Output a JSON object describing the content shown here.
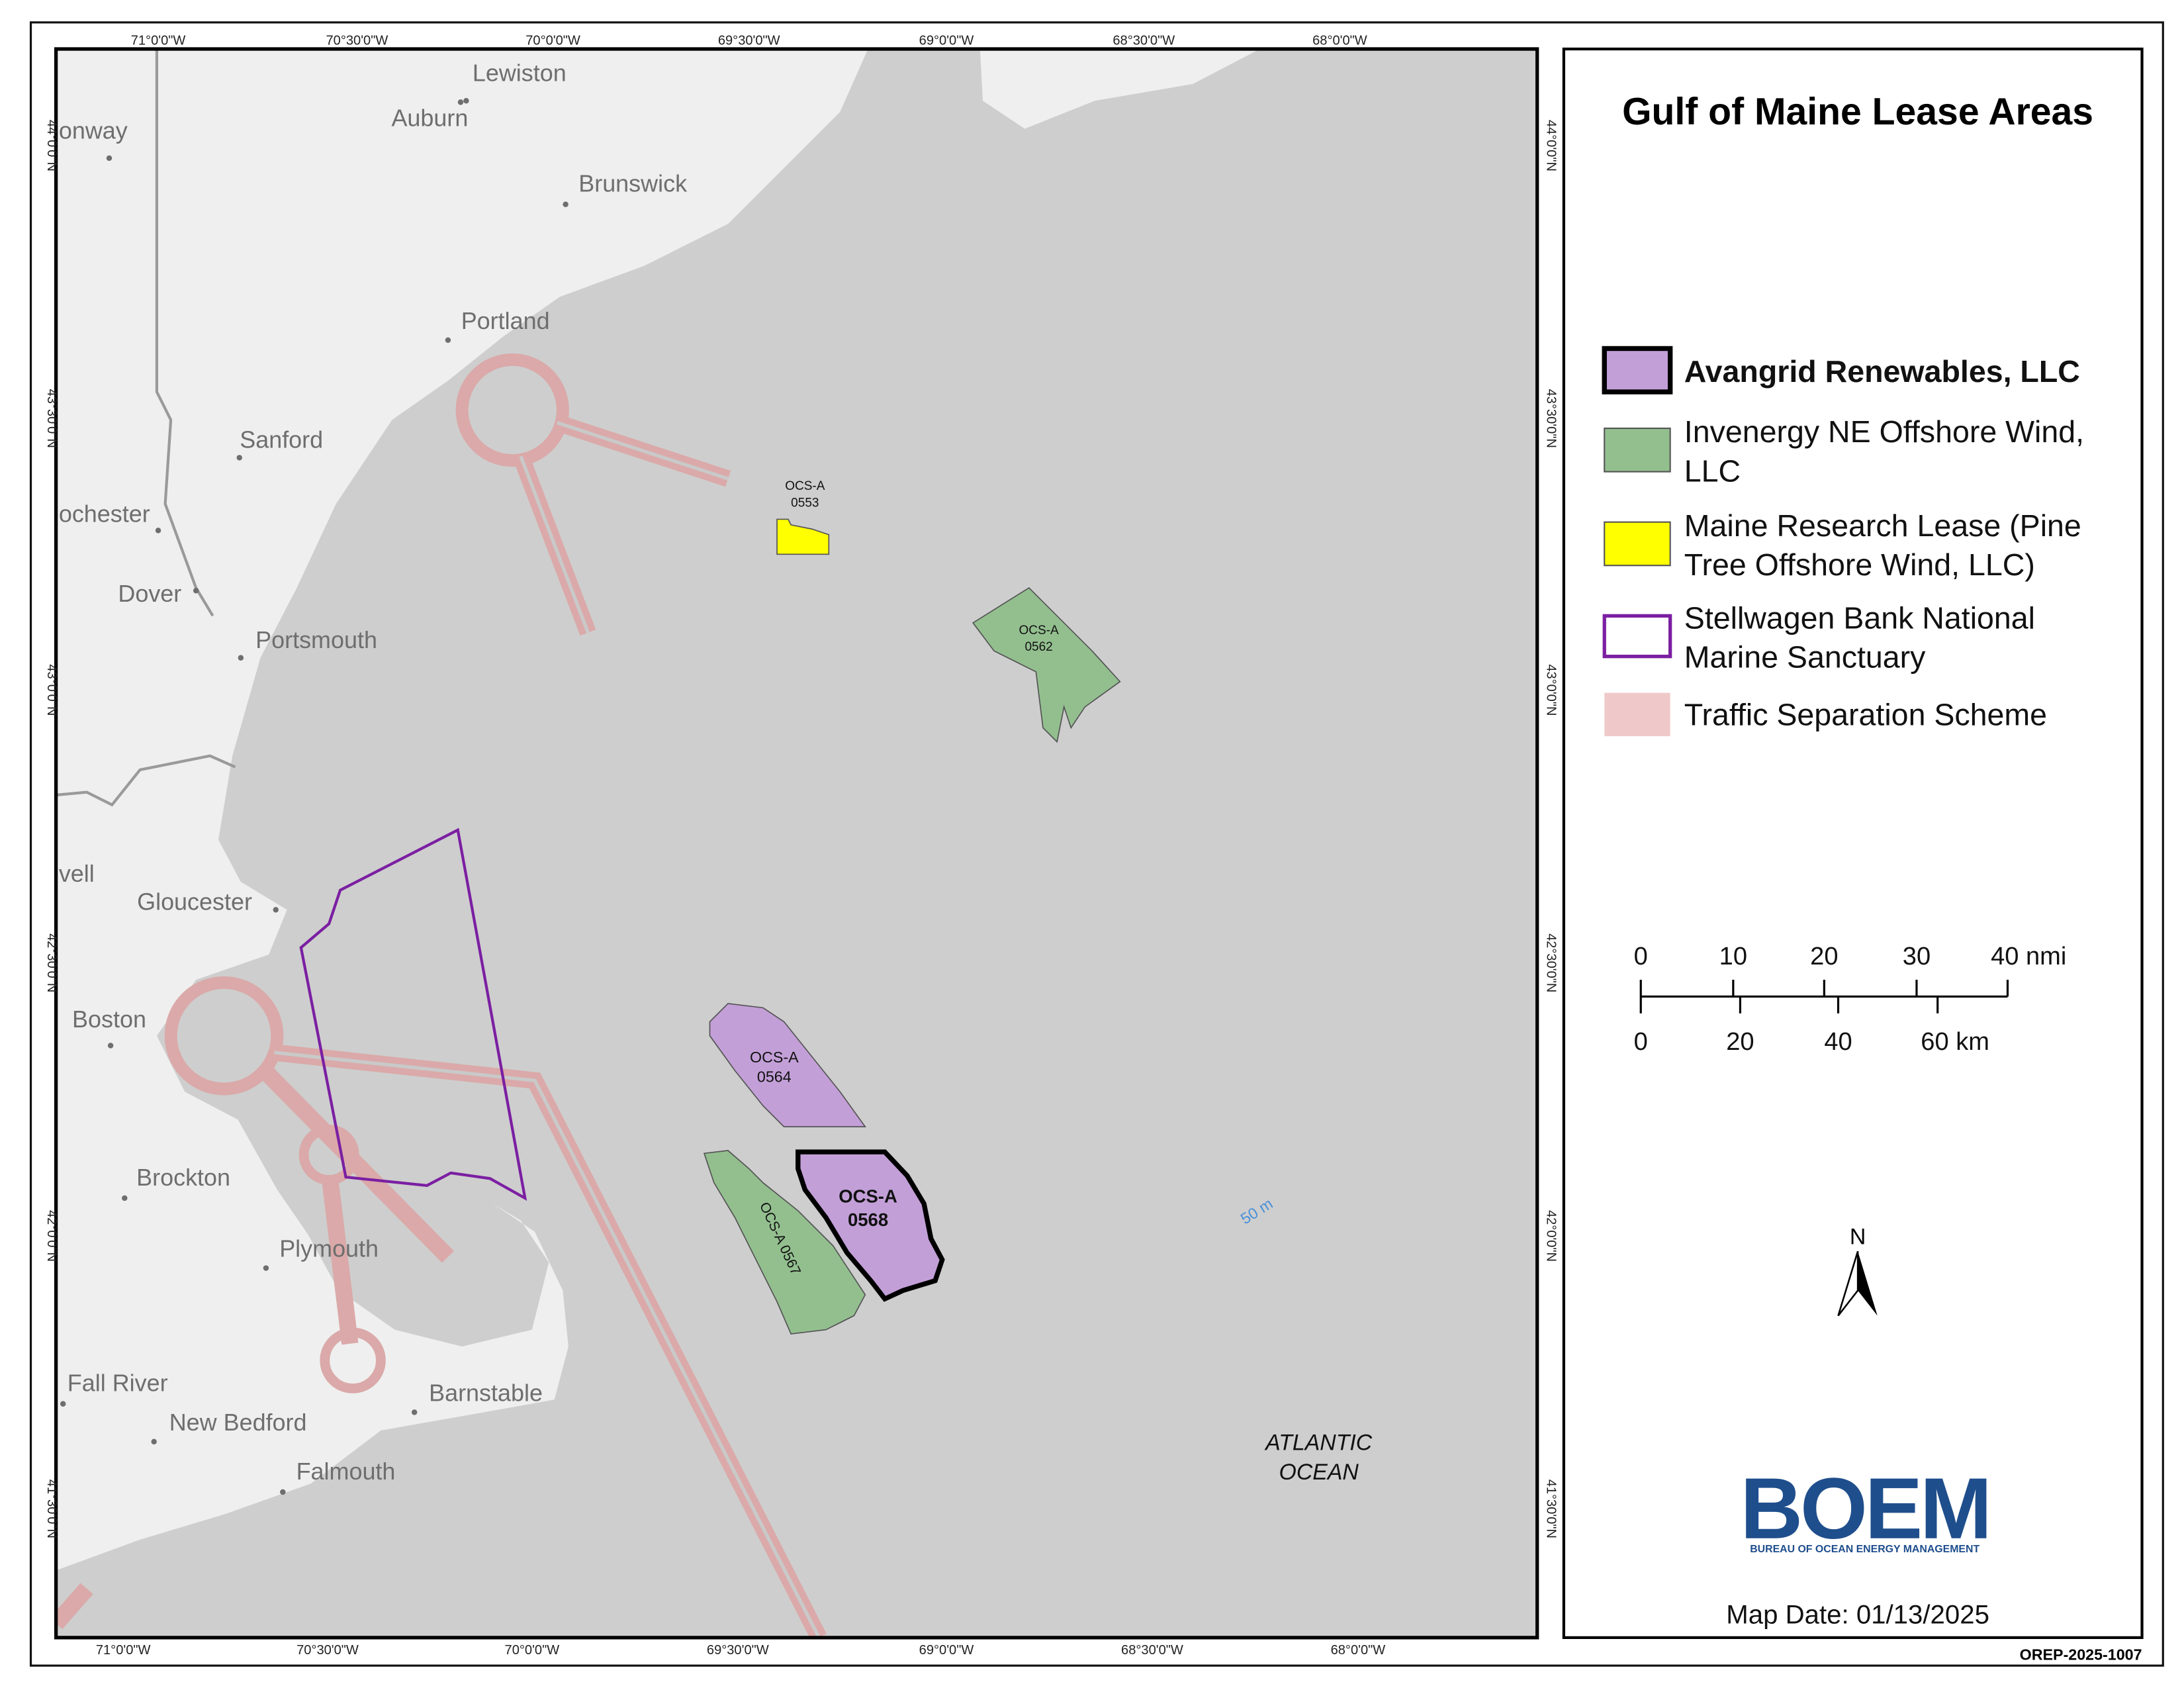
{
  "map": {
    "title": "Gulf of Maine Lease Areas",
    "legend": [
      {
        "lines": [
          "Avangrid Renewables, LLC"
        ]
      },
      {
        "lines": [
          "Invenergy NE Offshore Wind,",
          "LLC"
        ]
      },
      {
        "lines": [
          "Maine Research Lease (Pine",
          "Tree Offshore Wind, LLC)"
        ]
      },
      {
        "lines": [
          "Stellwagen Bank National",
          "Marine Sanctuary"
        ]
      },
      {
        "lines": [
          "Traffic Separation Scheme"
        ]
      }
    ],
    "scale_bar": {
      "nmi_labels": [
        "0",
        "10",
        "20",
        "30",
        "40 nmi"
      ],
      "km_labels": [
        "0",
        "20",
        "40",
        "60 km"
      ]
    },
    "north_label": "N",
    "longitude_labels": [
      "71°0'0\"W",
      "70°30'0\"W",
      "70°0'0\"W",
      "69°30'0\"W",
      "69°0'0\"W",
      "68°30'0\"W",
      "68°0'0\"W"
    ],
    "latitude_labels": [
      "44°0'0\"N",
      "43°30'0\"N",
      "43°0'0\"N",
      "42°30'0\"N",
      "42°0'0\"N",
      "41°30'0\"N"
    ],
    "places": [
      "Lewiston",
      "Auburn",
      "onway",
      "Brunswick",
      "Portland",
      "Sanford",
      "ochester",
      "Dover",
      "Portsmouth",
      "vell",
      "Gloucester",
      "Boston",
      "Brockton",
      "Plymouth",
      "Fall River",
      "New Bedford",
      "Barnstable",
      "Falmouth"
    ],
    "lease_areas": [
      {
        "lines": [
          "OCS-A",
          "0553"
        ]
      },
      {
        "lines": [
          "OCS-A",
          "0562"
        ]
      },
      {
        "lines": [
          "OCS-A",
          "0564"
        ]
      },
      {
        "lines": [
          "OCS-A 0567"
        ]
      },
      {
        "lines": [
          "OCS-A",
          "0568"
        ]
      }
    ],
    "depth_label": "50 m",
    "ocean_label": [
      "ATLANTIC",
      "OCEAN"
    ],
    "logo": {
      "name": "BOEM",
      "subtitle": "BUREAU OF OCEAN ENERGY MANAGEMENT"
    },
    "map_date": "Map Date: 01/13/2025",
    "document_id": "OREP-2025-1007"
  }
}
